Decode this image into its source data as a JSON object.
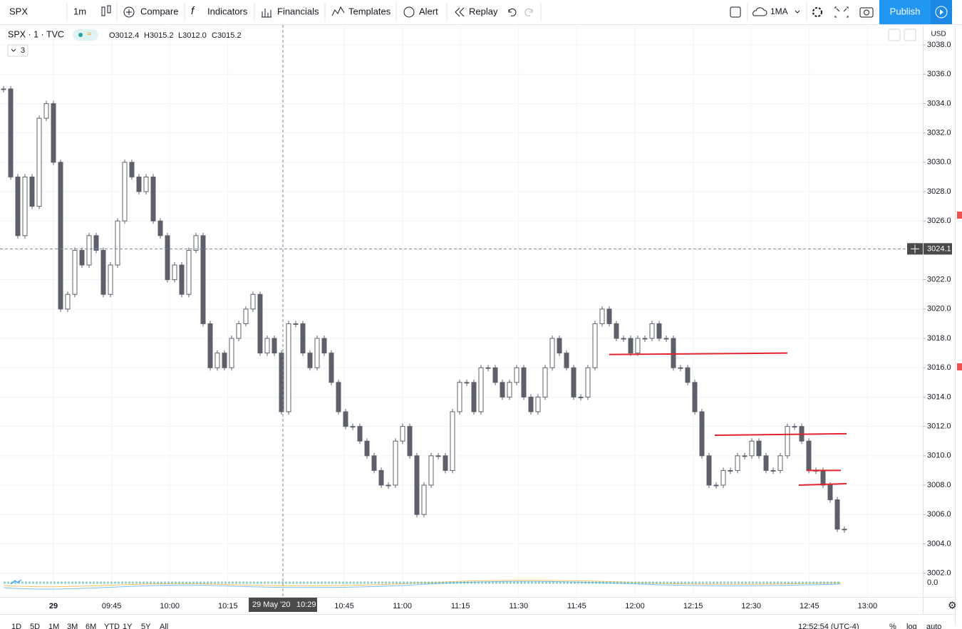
{
  "toolbar": {
    "symbol": "SPX",
    "interval": "1m",
    "compare": "Compare",
    "indicators": "Indicators",
    "financials": "Financials",
    "templates": "Templates",
    "alert": "Alert",
    "replay": "Replay",
    "ma": "1MA",
    "publish": "Publish"
  },
  "legend": {
    "symbol": "SPX · 1 · TVC",
    "open": "O3012.4",
    "high": "H3015.2",
    "low": "L3012.0",
    "close": "C3015.2",
    "studies_count": "3"
  },
  "price_axis": {
    "currency": "USD",
    "ylim": [
      3000.38,
      3039.36
    ],
    "ticks": [
      {
        "value": 3038,
        "label": "3038.0"
      },
      {
        "value": 3036,
        "label": "3036.0"
      },
      {
        "value": 3034,
        "label": "3034.0"
      },
      {
        "value": 3032,
        "label": "3032.0"
      },
      {
        "value": 3030,
        "label": "3030.0"
      },
      {
        "value": 3028,
        "label": "3028.0"
      },
      {
        "value": 3026,
        "label": "3026.0"
      },
      {
        "value": 3022,
        "label": "3022.0"
      },
      {
        "value": 3020,
        "label": "3020.0"
      },
      {
        "value": 3018,
        "label": "3018.0"
      },
      {
        "value": 3016,
        "label": "3016.0"
      },
      {
        "value": 3014,
        "label": "3014.0"
      },
      {
        "value": 3012,
        "label": "3012.0"
      },
      {
        "value": 3010,
        "label": "3010.0"
      },
      {
        "value": 3008,
        "label": "3008.0"
      },
      {
        "value": 3006,
        "label": "3006.0"
      },
      {
        "value": 3004,
        "label": "3004.0"
      },
      {
        "value": 3002,
        "label": "3002.0"
      }
    ],
    "indicator_tick": "0.0"
  },
  "crosshair": {
    "price": 3024.1,
    "label": "3024.1",
    "date_label": "29 May '20",
    "time_label": "10:29"
  },
  "time_axis": {
    "labels": [
      "29",
      "09:45",
      "10:00",
      "10:15",
      "10:45",
      "11:00",
      "11:15",
      "11:30",
      "11:45",
      "12:00",
      "12:15",
      "12:30",
      "12:45",
      "13:00"
    ]
  },
  "price_chart": {
    "up_color": "#ffffff",
    "down_color": "#5d606b",
    "outline": "#5d606b",
    "closes": [
      3035,
      3029,
      3025,
      3029,
      3027,
      3033,
      3034,
      3030,
      3020,
      3021,
      3024,
      3023,
      3025,
      3024,
      3021,
      3023,
      3026,
      3030,
      3029,
      3028,
      3029,
      3026,
      3025,
      3022,
      3023,
      3021,
      3024,
      3025,
      3019,
      3016,
      3017,
      3016,
      3018,
      3019,
      3020,
      3021,
      3017,
      3018,
      3017,
      3013,
      3019,
      3019,
      3017,
      3016,
      3018,
      3017,
      3015,
      3013,
      3012,
      3012,
      3011,
      3010,
      3009,
      3008,
      3008,
      3011,
      3012,
      3010,
      3006,
      3008,
      3010,
      3010,
      3009,
      3013,
      3015,
      3015,
      3013,
      3016,
      3016,
      3015,
      3014,
      3015,
      3016,
      3014,
      3013,
      3014,
      3016,
      3018,
      3017,
      3016,
      3014,
      3014,
      3016,
      3019,
      3020,
      3019,
      3018,
      3018,
      3017,
      3018,
      3018,
      3019,
      3018,
      3018,
      3016,
      3016,
      3015,
      3013,
      3010,
      3008,
      3008,
      3009,
      3009,
      3010,
      3010,
      3011,
      3010,
      3009,
      3009,
      3010,
      3012,
      3012,
      3011,
      3009,
      3009,
      3008,
      3007,
      3005,
      3005
    ]
  },
  "drawings": [
    {
      "prices": [
        3016.9,
        3017.0
      ],
      "color": "#e0232f"
    },
    {
      "prices": [
        3011.4,
        3011.5
      ],
      "color": "#e0232f"
    },
    {
      "prices": [
        3009.0,
        3009.0
      ],
      "color": "#e0232f"
    },
    {
      "prices": [
        3008.0,
        3008.1
      ],
      "color": "#e0232f"
    }
  ],
  "bottom_bar": {
    "ranges": [
      "1D",
      "5D",
      "1M",
      "3M",
      "6M",
      "YTD",
      "1Y",
      "5Y",
      "All"
    ],
    "clock": "12:52:54 (UTC-4)",
    "percent": "%",
    "log": "log",
    "auto": "auto"
  }
}
